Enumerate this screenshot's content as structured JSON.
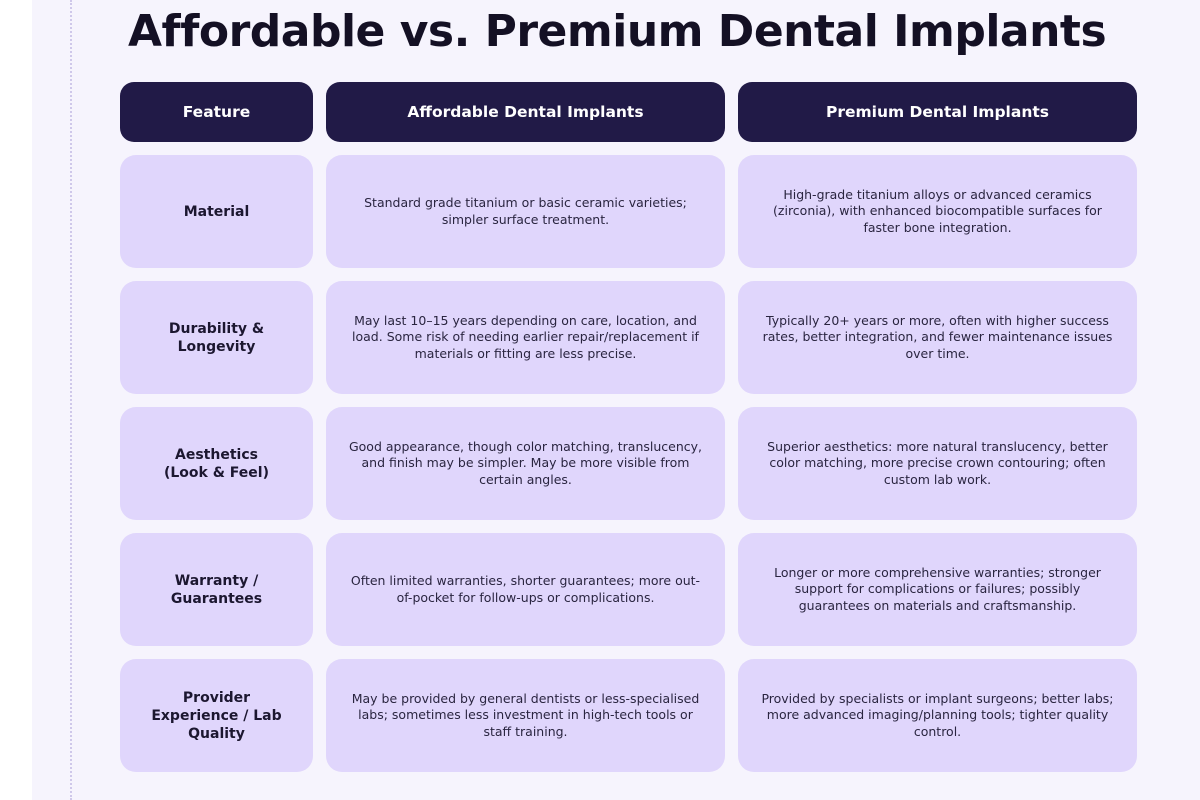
{
  "title": "Affordable vs. Premium Dental Implants",
  "headers": [
    "Feature",
    "Affordable Dental Implants",
    "Premium Dental Implants"
  ],
  "rows": [
    {
      "feature": "Material",
      "affordable": "Standard grade titanium or basic ceramic varieties; simpler surface treatment.",
      "premium": "High-grade titanium alloys or advanced ceramics (zirconia), with enhanced biocompatible surfaces for faster bone integration."
    },
    {
      "feature": "Durability &\nLongevity",
      "affordable": "May last 10–15 years depending on care, location, and load. Some risk of needing earlier repair/replacement if materials or fitting are less precise.",
      "premium": "Typically 20+ years or more, often with higher success rates, better integration, and fewer maintenance issues over time."
    },
    {
      "feature": "Aesthetics\n(Look & Feel)",
      "affordable": "Good appearance, though color matching, translucency, and finish may be simpler. May be more visible from certain angles.",
      "premium": "Superior aesthetics: more natural translucency, better color matching, more precise crown contouring; often custom lab work."
    },
    {
      "feature": "Warranty /\nGuarantees",
      "affordable": "Often limited warranties, shorter guarantees; more out-of-pocket for follow-ups or complications.",
      "premium": "Longer or more comprehensive warranties; stronger support for complications or failures; possibly guarantees on materials and craftsmanship."
    },
    {
      "feature": "Provider\nExperience / Lab\nQuality",
      "affordable": "May be provided by general dentists or less-specialised labs; sometimes less investment in high-tech tools or staff training.",
      "premium": "Provided by specialists or implant surgeons; better labs; more advanced imaging/planning tools; tighter quality control."
    }
  ]
}
